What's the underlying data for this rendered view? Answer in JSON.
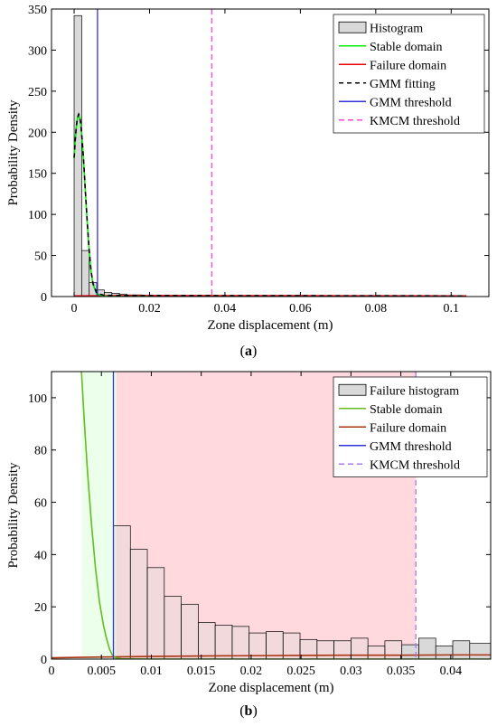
{
  "chart_data": [
    {
      "type": "bar",
      "panel_label": "a",
      "xlabel": "Zone displacement (m)",
      "ylabel": "Probability Density",
      "xlim": [
        -0.006,
        0.11
      ],
      "ylim": [
        0,
        350
      ],
      "xticks": [
        0,
        0.02,
        0.04,
        0.06,
        0.08,
        0.1
      ],
      "xtick_labels": [
        "0",
        "0.02",
        "0.04",
        "0.06",
        "0.08",
        "0.1"
      ],
      "yticks": [
        0,
        50,
        100,
        150,
        200,
        250,
        300,
        350
      ],
      "ytick_labels": [
        "0",
        "50",
        "100",
        "150",
        "200",
        "250",
        "300",
        "350"
      ],
      "grid": false,
      "legend_position": "top-right",
      "legend": [
        "Histogram",
        "Stable domain",
        "Failure domain",
        "GMM fitting",
        "GMM threshold",
        "KMCM threshold"
      ],
      "colors": {
        "histogram_fill": "#d9d9d9",
        "stable": "#00ee00",
        "failure": "#ee0000",
        "gmm_fit": "#000000",
        "gmm_threshold": "#3333dd",
        "kmcm_threshold": "#ff44dd"
      },
      "histogram": {
        "bin_edges": [
          0,
          0.002,
          0.004,
          0.006,
          0.008,
          0.01,
          0.012,
          0.014,
          0.016,
          0.018,
          0.02,
          0.022,
          0.024,
          0.026,
          0.028,
          0.03,
          0.032,
          0.034,
          0.036,
          0.038,
          0.04,
          0.042,
          0.044,
          0.046,
          0.048,
          0.05,
          0.052,
          0.054,
          0.056,
          0.058,
          0.06,
          0.062,
          0.064,
          0.066,
          0.068,
          0.07,
          0.072,
          0.074,
          0.076,
          0.078,
          0.08,
          0.082,
          0.084,
          0.086,
          0.088,
          0.09,
          0.092,
          0.094,
          0.096,
          0.098,
          0.1,
          0.102,
          0.104
        ],
        "values": [
          342,
          56,
          17,
          8,
          5,
          4,
          3,
          2,
          2,
          1,
          1,
          1,
          1,
          1,
          1,
          1,
          1,
          1,
          0.5,
          0.5,
          0.5,
          0.5,
          0.5,
          0.5,
          0.5,
          0.5,
          0.5,
          0.5,
          0.5,
          0.5,
          0.5,
          0.5,
          0.5,
          0.5,
          0.5,
          0.5,
          0.5,
          0.5,
          1,
          0.5,
          0.5,
          0.5,
          0.5,
          0.5,
          0.5,
          0.5,
          0.5,
          0.5,
          0.5,
          0.5,
          0.5,
          0.5
        ]
      },
      "stable_domain": {
        "x": [
          0,
          0.0003,
          0.0006,
          0.0009,
          0.0012,
          0.0015,
          0.0018,
          0.0022,
          0.0026,
          0.003,
          0.0035,
          0.004,
          0.0045,
          0.005,
          0.006,
          0.008,
          0.01,
          0.015,
          0.02
        ],
        "y": [
          168,
          190,
          207,
          217,
          221,
          218,
          208,
          186,
          158,
          126,
          88,
          55,
          30,
          15,
          3,
          0.5,
          0.1,
          0,
          0
        ]
      },
      "failure_domain": {
        "x": [
          0,
          0.02,
          0.04,
          0.06,
          0.08,
          0.104
        ],
        "y": [
          0.8,
          1.2,
          1.1,
          1.0,
          0.9,
          0.8
        ]
      },
      "gmm_fitting": {
        "x": [
          0,
          0.0003,
          0.0006,
          0.0009,
          0.0012,
          0.0015,
          0.0018,
          0.0022,
          0.0026,
          0.003,
          0.0035,
          0.004,
          0.0045,
          0.005,
          0.006,
          0.008,
          0.01,
          0.015,
          0.02,
          0.04,
          0.06,
          0.08,
          0.104
        ],
        "y": [
          169,
          191,
          208,
          218,
          222,
          219,
          209,
          187,
          159,
          127,
          89,
          56,
          31,
          16,
          4,
          1.5,
          1.3,
          1.2,
          1.2,
          1.1,
          1.0,
          0.9,
          0.8
        ]
      },
      "gmm_threshold": 0.0062,
      "kmcm_threshold": 0.0365
    },
    {
      "type": "bar",
      "panel_label": "b",
      "xlabel": "Zone displacement (m)",
      "ylabel": "Probability Density",
      "xlim": [
        0,
        0.044
      ],
      "ylim": [
        0,
        110
      ],
      "xticks": [
        0,
        0.005,
        0.01,
        0.015,
        0.02,
        0.025,
        0.03,
        0.035,
        0.04
      ],
      "xtick_labels": [
        "0",
        "0.005",
        "0.01",
        "0.015",
        "0.02",
        "0.025",
        "0.03",
        "0.035",
        "0.04"
      ],
      "yticks": [
        0,
        20,
        40,
        60,
        80,
        100
      ],
      "ytick_labels": [
        "0",
        "20",
        "40",
        "60",
        "80",
        "100"
      ],
      "grid": false,
      "legend_position": "top-right",
      "legend": [
        "Failure histogram",
        "Stable domain",
        "Failure domain",
        "GMM threshold",
        "KMCM threshold"
      ],
      "colors": {
        "histogram_fill": "#d9d9d9",
        "stable": "#66bb22",
        "failure": "#aa3311",
        "gmm_threshold": "#3333dd",
        "kmcm_threshold": "#aa77ee",
        "region_fill": "#ffd9de",
        "stable_glow": "#e6ffe6"
      },
      "histogram": {
        "bin_edges": [
          0.0062,
          0.0079,
          0.0096,
          0.0113,
          0.013,
          0.0147,
          0.0164,
          0.0181,
          0.0198,
          0.0215,
          0.0232,
          0.0249,
          0.0266,
          0.0283,
          0.03,
          0.0317,
          0.0334,
          0.0351,
          0.0368,
          0.0385,
          0.0402,
          0.0419,
          0.044
        ],
        "values": [
          51,
          42,
          35,
          24,
          21,
          14,
          13,
          12.5,
          10,
          10.5,
          10,
          7.5,
          7,
          7,
          8,
          5,
          7,
          5.5,
          8,
          5,
          7,
          6
        ]
      },
      "stable_domain": {
        "x": [
          0.003,
          0.0033,
          0.0036,
          0.004,
          0.0044,
          0.0048,
          0.0052,
          0.0055,
          0.0058,
          0.0061,
          0.0064,
          0.007,
          0.01,
          0.02,
          0.03,
          0.044
        ],
        "y": [
          110,
          90,
          72,
          52,
          35,
          22,
          13,
          8,
          4,
          1.5,
          0.5,
          0.1,
          0,
          0,
          0,
          0
        ]
      },
      "failure_domain": {
        "x": [
          0,
          0.005,
          0.01,
          0.015,
          0.02,
          0.025,
          0.03,
          0.035,
          0.04,
          0.044
        ],
        "y": [
          0.5,
          0.8,
          1.0,
          1.2,
          1.3,
          1.4,
          1.5,
          1.5,
          1.6,
          1.6
        ]
      },
      "gmm_threshold": 0.0062,
      "kmcm_threshold": 0.0365
    }
  ]
}
